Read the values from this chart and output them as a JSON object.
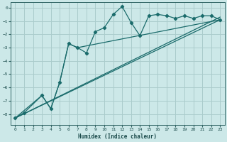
{
  "xlabel": "Humidex (Indice chaleur)",
  "bg_color": "#cce8e8",
  "grid_color": "#aacccc",
  "line_color": "#1a6b6b",
  "xlim": [
    -0.5,
    23.5
  ],
  "ylim": [
    -8.8,
    0.4
  ],
  "xticks": [
    0,
    1,
    2,
    3,
    4,
    5,
    6,
    7,
    8,
    9,
    10,
    11,
    12,
    13,
    14,
    15,
    16,
    17,
    18,
    19,
    20,
    21,
    22,
    23
  ],
  "yticks": [
    0,
    -1,
    -2,
    -3,
    -4,
    -5,
    -6,
    -7,
    -8
  ],
  "line1_x": [
    0,
    1,
    3,
    4,
    5,
    6,
    7,
    8,
    9,
    10,
    11,
    12,
    13,
    14,
    15,
    16,
    17,
    18,
    19,
    20,
    21,
    22,
    23
  ],
  "line1_y": [
    -8.3,
    -7.9,
    -6.6,
    -7.6,
    -5.6,
    -2.7,
    -3.0,
    -3.4,
    -1.8,
    -1.5,
    -0.5,
    0.1,
    -1.1,
    -2.1,
    -0.6,
    -0.5,
    -0.6,
    -0.8,
    -0.6,
    -0.8,
    -0.6,
    -0.6,
    -0.9
  ],
  "line2_x": [
    0,
    3,
    4,
    5,
    6,
    7,
    23
  ],
  "line2_y": [
    -8.3,
    -6.6,
    -7.6,
    -5.6,
    -2.7,
    -3.0,
    -0.9
  ],
  "line3_x": [
    0,
    23
  ],
  "line3_y": [
    -8.3,
    -0.7
  ],
  "line4_x": [
    0,
    23
  ],
  "line4_y": [
    -8.3,
    -0.9
  ]
}
